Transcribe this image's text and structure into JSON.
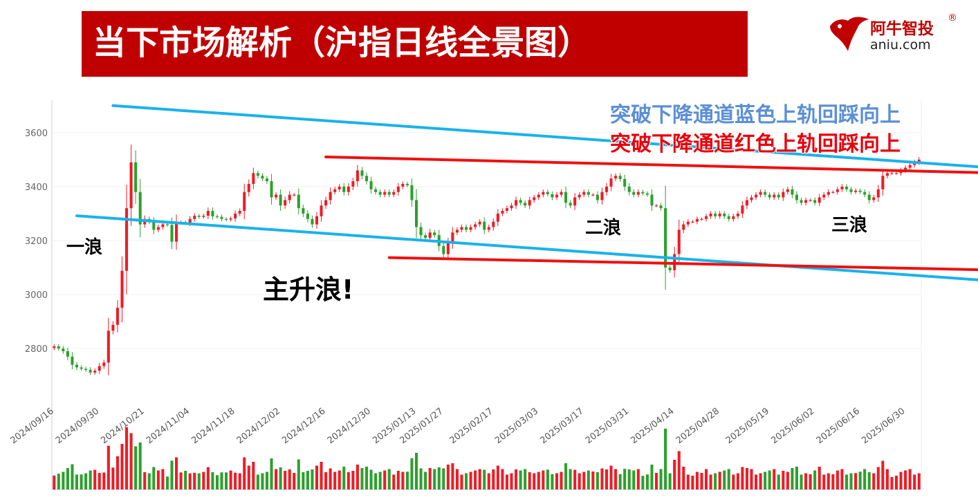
{
  "header": {
    "title": "当下市场解析（沪指日线全景图）"
  },
  "logo": {
    "name": "阿牛智投",
    "reg_mark": "®",
    "domain": "aniu.com"
  },
  "colors": {
    "title_bg": "#c00000",
    "up": "#ee1c25",
    "down": "#2ca02c",
    "blue_channel": "#1ab2ea",
    "red_channel": "#ee1111",
    "annotation_blue": "#5b8fd6",
    "annotation_red": "#e8000b"
  },
  "chart_data": {
    "type": "candlestick",
    "y_ticks": [
      2800,
      3000,
      3200,
      3400,
      3600
    ],
    "y_range": [
      2580,
      3720
    ],
    "x_tick_labels": [
      "2024/09/16",
      "2024/09/30",
      "2024/10/21",
      "2024/11/04",
      "2024/11/18",
      "2024/12/02",
      "2024/12/16",
      "2024/12/30",
      "2025/01/13",
      "2025/01/27",
      "2025/02/17",
      "2025/03/03",
      "2025/03/17",
      "2025/03/31",
      "2025/04/14",
      "2025/04/28",
      "2025/05/19",
      "2025/06/02",
      "2025/06/16",
      "2025/06/30"
    ],
    "x_tick_positions": [
      0,
      10,
      20,
      30,
      40,
      50,
      60,
      70,
      80,
      86,
      97,
      107,
      117,
      127,
      137,
      147,
      158,
      168,
      178,
      188
    ],
    "closes": [
      2808,
      2800,
      2790,
      2770,
      2740,
      2730,
      2725,
      2721,
      2711,
      2718,
      2735,
      2748,
      2866,
      2888,
      2951,
      3088,
      3320,
      3490,
      3380,
      3260,
      3280,
      3270,
      3240,
      3250,
      3260,
      3258,
      3196,
      3266,
      3268,
      3265,
      3280,
      3292,
      3288,
      3292,
      3310,
      3290,
      3288,
      3280,
      3278,
      3282,
      3300,
      3310,
      3380,
      3410,
      3450,
      3440,
      3430,
      3420,
      3360,
      3370,
      3330,
      3350,
      3370,
      3370,
      3320,
      3300,
      3280,
      3260,
      3290,
      3330,
      3350,
      3380,
      3390,
      3400,
      3380,
      3400,
      3420,
      3460,
      3440,
      3420,
      3390,
      3380,
      3370,
      3380,
      3370,
      3380,
      3400,
      3410,
      3405,
      3350,
      3250,
      3220,
      3210,
      3230,
      3220,
      3180,
      3150,
      3190,
      3230,
      3240,
      3250,
      3240,
      3250,
      3260,
      3270,
      3240,
      3250,
      3270,
      3300,
      3310,
      3320,
      3330,
      3350,
      3340,
      3330,
      3350,
      3360,
      3370,
      3380,
      3372,
      3360,
      3370,
      3380,
      3340,
      3330,
      3360,
      3370,
      3380,
      3370,
      3370,
      3350,
      3380,
      3400,
      3430,
      3440,
      3428,
      3400,
      3380,
      3370,
      3380,
      3375,
      3370,
      3330,
      3330,
      3320,
      3100,
      3090,
      3150,
      3240,
      3260,
      3270,
      3270,
      3280,
      3280,
      3290,
      3300,
      3290,
      3300,
      3290,
      3280,
      3290,
      3300,
      3330,
      3350,
      3360,
      3370,
      3380,
      3370,
      3360,
      3370,
      3360,
      3380,
      3390,
      3370,
      3350,
      3340,
      3350,
      3350,
      3340,
      3360,
      3370,
      3380,
      3380,
      3390,
      3400,
      3390,
      3380,
      3385,
      3380,
      3370,
      3350,
      3360,
      3390,
      3440,
      3450,
      3450,
      3450,
      3460,
      3470,
      3480,
      3490,
      3500
    ],
    "blue_channel": {
      "upper": [
        [
          13,
          3700
        ],
        [
          346,
          3305
        ]
      ],
      "lower": [
        [
          5,
          3292
        ],
        [
          346,
          2885
        ]
      ]
    },
    "red_channel": {
      "upper": [
        [
          60,
          3510
        ],
        [
          346,
          3395
        ]
      ],
      "lower": [
        [
          74,
          3137
        ],
        [
          346,
          3043
        ]
      ]
    },
    "annotations": [
      {
        "text": "突破下降通道蓝色上轨回踩向上",
        "color": "blue"
      },
      {
        "text": "突破下降通道红色上轨回踩向上",
        "color": "red"
      },
      {
        "text": "一浪"
      },
      {
        "text": "主升浪!"
      },
      {
        "text": "二浪"
      },
      {
        "text": "三浪"
      }
    ]
  }
}
